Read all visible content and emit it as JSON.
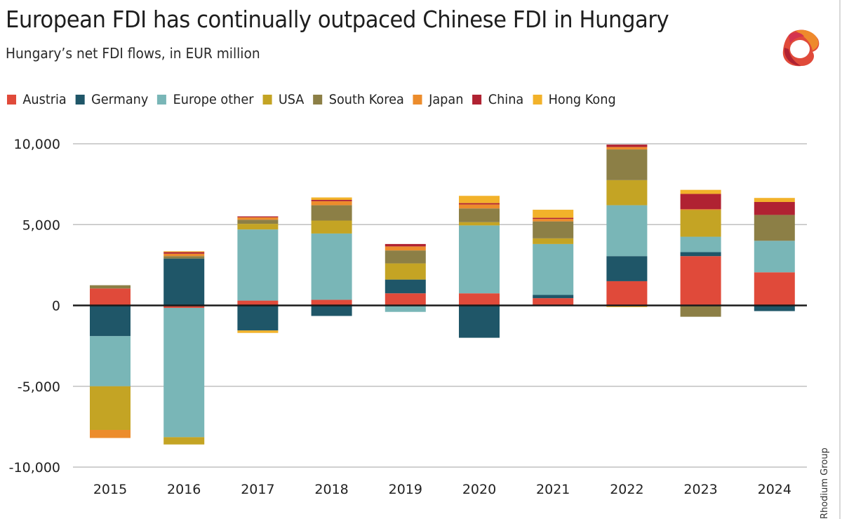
{
  "header": {
    "title": "European FDI has continually outpaced Chinese FDI in Hungary",
    "subtitle": "Hungary’s net FDI flows, in EUR million",
    "logo_icon": "rhodium-group-logo-icon"
  },
  "source": "Rhodium Group",
  "colors": {
    "Austria": "#e04a3a",
    "Germany": "#1f5668",
    "Europe other": "#79b6b7",
    "USA": "#c4a424",
    "South Korea": "#8c7f46",
    "Japan": "#ec8c2c",
    "China": "#b02232",
    "Hong Kong": "#f2b22a",
    "zero_line": "#1a1a1a",
    "grid": "#c0c0c0"
  },
  "legend": [
    {
      "label": "Austria"
    },
    {
      "label": "Germany"
    },
    {
      "label": "Europe other"
    },
    {
      "label": "USA"
    },
    {
      "label": "South Korea"
    },
    {
      "label": "Japan"
    },
    {
      "label": "China"
    },
    {
      "label": "Hong Kong"
    }
  ],
  "chart_data": {
    "type": "bar",
    "stacked": true,
    "title": "European FDI has continually outpaced Chinese FDI in Hungary",
    "subtitle": "Hungary’s net FDI flows, in EUR million",
    "xlabel": "",
    "ylabel": "",
    "categories": [
      "2015",
      "2016",
      "2017",
      "2018",
      "2019",
      "2020",
      "2021",
      "2022",
      "2023",
      "2024"
    ],
    "ylim": [
      -10000,
      10000
    ],
    "yticks": [
      10000,
      5000,
      0,
      -5000,
      -10000
    ],
    "ytick_labels": [
      "10,000",
      "5,000",
      "0",
      "-5,000",
      "-10,000"
    ],
    "grid": true,
    "legend_position": "top-left",
    "series": [
      {
        "name": "Austria",
        "values": [
          1050,
          -150,
          300,
          350,
          750,
          750,
          450,
          1500,
          3050,
          2050
        ]
      },
      {
        "name": "Germany",
        "values": [
          -1900,
          2900,
          -1550,
          -650,
          850,
          -2000,
          200,
          1550,
          250,
          -350
        ]
      },
      {
        "name": "Europe other",
        "values": [
          -3100,
          -8000,
          4400,
          4100,
          -400,
          4200,
          3150,
          3150,
          950,
          1950
        ]
      },
      {
        "name": "USA",
        "values": [
          -2700,
          -450,
          350,
          800,
          1000,
          200,
          350,
          1550,
          1650,
          0
        ]
      },
      {
        "name": "South Korea",
        "values": [
          200,
          150,
          250,
          950,
          800,
          850,
          1050,
          1900,
          -700,
          1600
        ]
      },
      {
        "name": "Japan",
        "values": [
          -500,
          150,
          150,
          250,
          250,
          250,
          150,
          150,
          50,
          0
        ]
      },
      {
        "name": "China",
        "values": [
          0,
          100,
          60,
          80,
          150,
          80,
          70,
          150,
          950,
          800
        ]
      },
      {
        "name": "Hong Kong",
        "values": [
          0,
          50,
          -150,
          150,
          0,
          450,
          500,
          -100,
          250,
          250
        ]
      }
    ]
  }
}
